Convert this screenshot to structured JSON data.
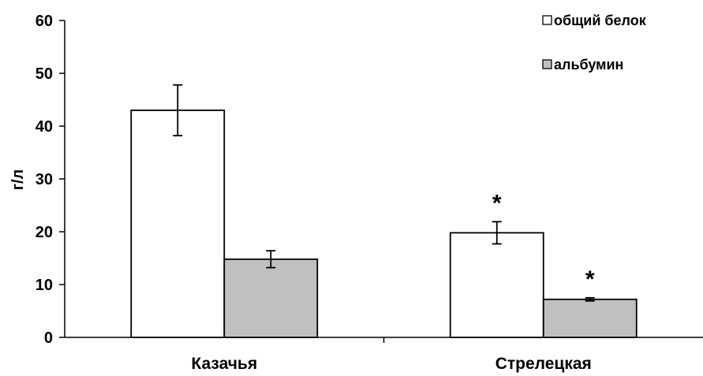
{
  "chart_data": {
    "type": "bar",
    "categories": [
      "Казачья",
      "Стрелецкая"
    ],
    "series": [
      {
        "name": "общий белок",
        "values": [
          43,
          19.8
        ],
        "error": [
          4.8,
          2.1
        ],
        "color": "#ffffff",
        "annotations": [
          "",
          "*"
        ]
      },
      {
        "name": "альбумин",
        "values": [
          14.8,
          7.2
        ],
        "error": [
          1.6,
          0.3
        ],
        "color": "#c0c0c0",
        "annotations": [
          "",
          "*"
        ]
      }
    ],
    "title": "",
    "xlabel": "",
    "ylabel": "г/л",
    "ylim": [
      0,
      60
    ],
    "yticks": [
      0,
      10,
      20,
      30,
      40,
      50,
      60
    ],
    "grid": false,
    "legend_position": "top-right"
  }
}
